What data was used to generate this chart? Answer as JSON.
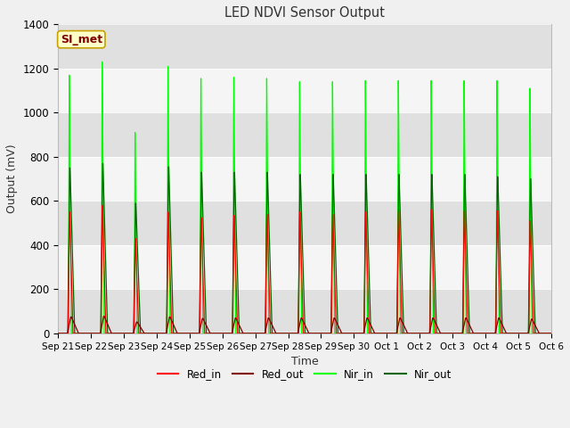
{
  "title": "LED NDVI Sensor Output",
  "xlabel": "Time",
  "ylabel": "Output (mV)",
  "ylim": [
    0,
    1400
  ],
  "num_cycles": 15,
  "outer_bg": "#f0f0f0",
  "plot_bg_light": "#f5f5f5",
  "plot_bg_dark": "#e0e0e0",
  "grid_color": "#d0d0d0",
  "legend_colors": [
    "#ff0000",
    "#800000",
    "#00ff00",
    "#006400"
  ],
  "annotation_text": "SI_met",
  "annotation_bg": "#ffffc8",
  "annotation_border": "#c8a000",
  "annotation_text_color": "#800000",
  "red_in_peaks": [
    550,
    580,
    430,
    550,
    525,
    535,
    540,
    550,
    540,
    550,
    555,
    560,
    555,
    555,
    510
  ],
  "red_out_peaks": [
    75,
    78,
    52,
    75,
    68,
    70,
    70,
    70,
    70,
    70,
    70,
    70,
    70,
    70,
    65
  ],
  "nir_in_peaks": [
    1170,
    1230,
    910,
    1210,
    1155,
    1160,
    1155,
    1140,
    1140,
    1145,
    1145,
    1145,
    1145,
    1145,
    1110
  ],
  "nir_out_peaks": [
    750,
    770,
    590,
    755,
    730,
    730,
    730,
    720,
    720,
    720,
    720,
    720,
    720,
    710,
    700
  ],
  "x_tick_labels": [
    "Sep 21",
    "Sep 22",
    "Sep 23",
    "Sep 24",
    "Sep 25",
    "Sep 26",
    "Sep 27",
    "Sep 28",
    "Sep 29",
    "Sep 30",
    "Oct 1",
    "Oct 2",
    "Oct 3",
    "Oct 4",
    "Oct 5",
    "Oct 6"
  ],
  "x_tick_positions": [
    0,
    1,
    2,
    3,
    4,
    5,
    6,
    7,
    8,
    9,
    10,
    11,
    12,
    13,
    14,
    15
  ],
  "yticks": [
    0,
    200,
    400,
    600,
    800,
    1000,
    1200,
    1400
  ]
}
